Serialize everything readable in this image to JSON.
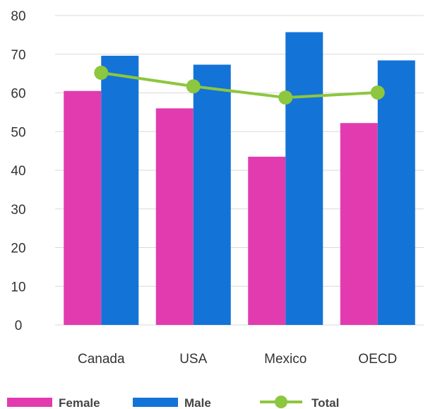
{
  "chart_data": {
    "type": "bar",
    "categories": [
      "Canada",
      "USA",
      "Mexico",
      "OECD"
    ],
    "series": [
      {
        "name": "Female",
        "type": "bar",
        "color": "#e23bb0",
        "values": [
          60.5,
          56,
          43.5,
          52.2
        ]
      },
      {
        "name": "Male",
        "type": "bar",
        "color": "#1473d6",
        "values": [
          69.6,
          67.3,
          75.7,
          68.4
        ]
      },
      {
        "name": "Total",
        "type": "line",
        "color": "#8dc63f",
        "values": [
          65.2,
          61.7,
          58.8,
          60.1
        ]
      }
    ],
    "yticks": [
      "0",
      "10",
      "20",
      "30",
      "40",
      "50",
      "60",
      "70",
      "80"
    ],
    "ylim": [
      0,
      80
    ],
    "grid": true,
    "legend": "bottom"
  }
}
